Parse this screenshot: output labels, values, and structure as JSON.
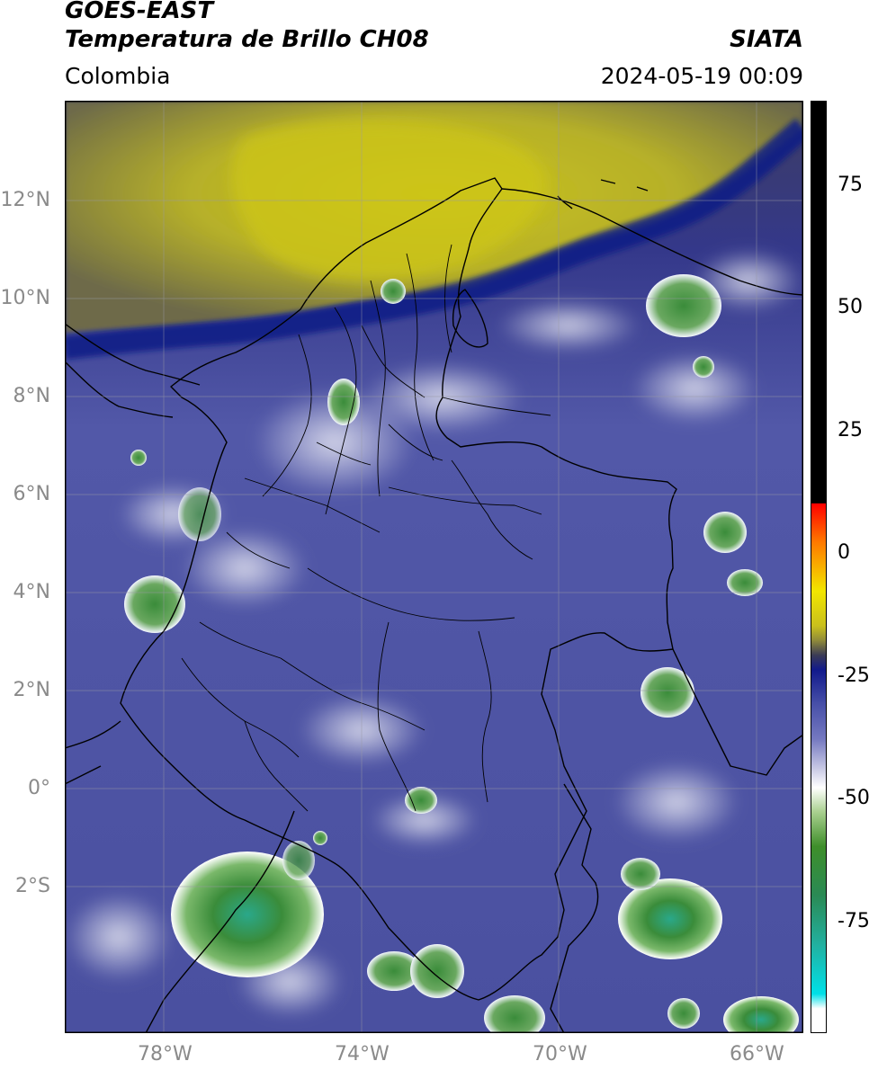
{
  "header": {
    "satellite": "GOES-EAST",
    "product": "Temperatura de Brillo CH08",
    "region": "Colombia",
    "agency": "SIATA",
    "datetime": "2024-05-19 00:09"
  },
  "map": {
    "lon_range": [
      -80,
      -64.9
    ],
    "lat_range": [
      -5.2,
      14.1
    ],
    "lat_ticks": [
      {
        "value": 12,
        "label": "12°N"
      },
      {
        "value": 10,
        "label": "10°N"
      },
      {
        "value": 8,
        "label": "8°N"
      },
      {
        "value": 6,
        "label": "6°N"
      },
      {
        "value": 4,
        "label": "4°N"
      },
      {
        "value": 2,
        "label": "2°N"
      },
      {
        "value": 0,
        "label": "0°"
      },
      {
        "value": -2,
        "label": "2°S"
      }
    ],
    "lon_ticks": [
      {
        "value": -78,
        "label": "78°W"
      },
      {
        "value": -74,
        "label": "74°W"
      },
      {
        "value": -70,
        "label": "70°W"
      },
      {
        "value": -66,
        "label": "66°W"
      }
    ]
  },
  "colorbar": {
    "range": [
      -100,
      90
    ],
    "ticks": [
      {
        "value": 75,
        "label": "75"
      },
      {
        "value": 50,
        "label": "50"
      },
      {
        "value": 25,
        "label": "25"
      },
      {
        "value": 0,
        "label": "0"
      },
      {
        "value": -25,
        "label": "-25"
      },
      {
        "value": -50,
        "label": "-50"
      },
      {
        "value": -75,
        "label": "-75"
      }
    ],
    "stops": [
      {
        "value": 90,
        "color": "#000000"
      },
      {
        "value": 8,
        "color": "#000000"
      },
      {
        "value": 7.9,
        "color": "#ff0000"
      },
      {
        "value": 0,
        "color": "#ff7a00"
      },
      {
        "value": -10,
        "color": "#f2e600"
      },
      {
        "value": -17,
        "color": "#c9c01d"
      },
      {
        "value": -20,
        "color": "#8f8a3a"
      },
      {
        "value": -23,
        "color": "#3b3b55"
      },
      {
        "value": -26,
        "color": "#111a8c"
      },
      {
        "value": -33,
        "color": "#4850a8"
      },
      {
        "value": -40,
        "color": "#7478c0"
      },
      {
        "value": -46,
        "color": "#c7c8e4"
      },
      {
        "value": -50,
        "color": "#ffffff"
      },
      {
        "value": -55,
        "color": "#a8cf8e"
      },
      {
        "value": -62,
        "color": "#3e8e2a"
      },
      {
        "value": -72,
        "color": "#2a8a55"
      },
      {
        "value": -82,
        "color": "#22b0a0"
      },
      {
        "value": -92,
        "color": "#00e0e8"
      },
      {
        "value": -95,
        "color": "#ffffff"
      },
      {
        "value": -100,
        "color": "#ffffff"
      }
    ]
  },
  "colors": {
    "cold_cloud": "#3a8a38",
    "very_cold_cloud": "#2aa88a",
    "clear_moist": "#4a4fa3",
    "dry_air": "#c2bf22",
    "moisture_edge": "#16208a",
    "border_line": "#000000"
  }
}
